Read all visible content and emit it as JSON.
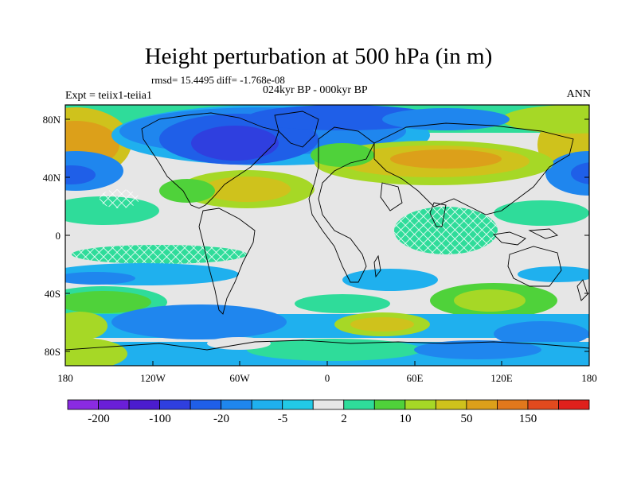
{
  "figure": {
    "title": "Height perturbation at 500 hPa (in m)",
    "rmsd_text": "rmsd= 15.4495 diff= -1.768e-08",
    "experiment": "Expt = teiix1-teiia1",
    "period": "024kyr BP - 000kyr BP",
    "season": "ANN"
  },
  "axes": {
    "lat_labels": [
      "80N",
      "40N",
      "0",
      "40S",
      "80S"
    ],
    "lon_labels": [
      "180",
      "120W",
      "60W",
      "0",
      "60E",
      "120E",
      "180"
    ],
    "lon_range": [
      -180,
      180
    ],
    "lat_range": [
      -90,
      90
    ],
    "projection": "cylindrical equidistant"
  },
  "colorbar": {
    "colors": [
      "#8a2be2",
      "#6a1fd8",
      "#4b1ccf",
      "#2f3fdf",
      "#1f5fe8",
      "#1f86ee",
      "#1fb0ee",
      "#22c9e6",
      "#e6e6e6",
      "#2fdc9a",
      "#4fd23a",
      "#a6d826",
      "#cfc21c",
      "#dca01a",
      "#e2781c",
      "#e24a1e",
      "#e0201c"
    ],
    "tick_labels": [
      "-200",
      "-100",
      "-20",
      "-5",
      "2",
      "10",
      "50",
      "150"
    ]
  }
}
